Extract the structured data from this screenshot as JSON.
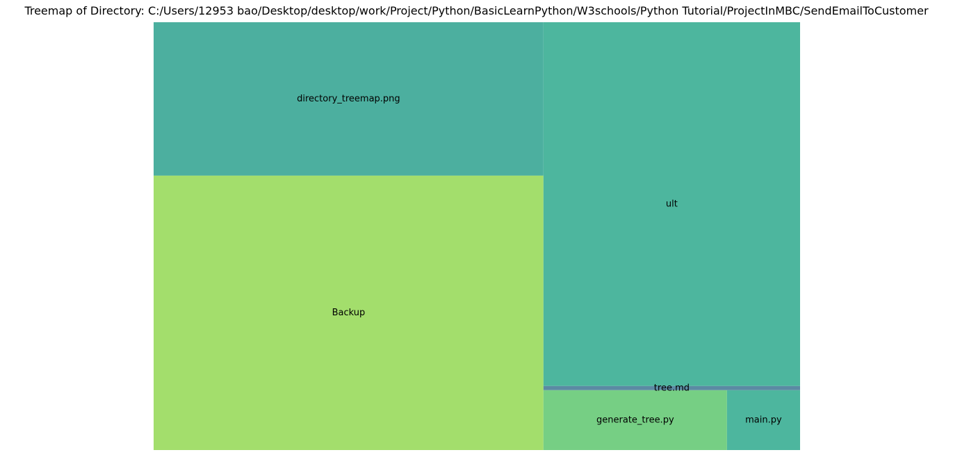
{
  "chart_data": {
    "type": "treemap",
    "title": "Treemap of Directory: C:/Users/12953 bao/Desktop/desktop/work/Project/Python/BasicLearnPython/W3schools/Python Tutorial/ProjectInMBC/SendEmailToCustomer",
    "items": [
      {
        "label": "directory_treemap.png",
        "value": 123,
        "color": "#4caf9f"
      },
      {
        "label": "Backup",
        "value": 220,
        "color": "#a3de6c"
      },
      {
        "label": "ult",
        "value": 192,
        "color": "#4db69e"
      },
      {
        "label": "tree.md",
        "value": 2.2,
        "color": "#5b8aa3"
      },
      {
        "label": "generate_tree.py",
        "value": 22.6,
        "color": "#76cf84"
      },
      {
        "label": "main.py",
        "value": 9.0,
        "color": "#4db69e"
      }
    ]
  }
}
